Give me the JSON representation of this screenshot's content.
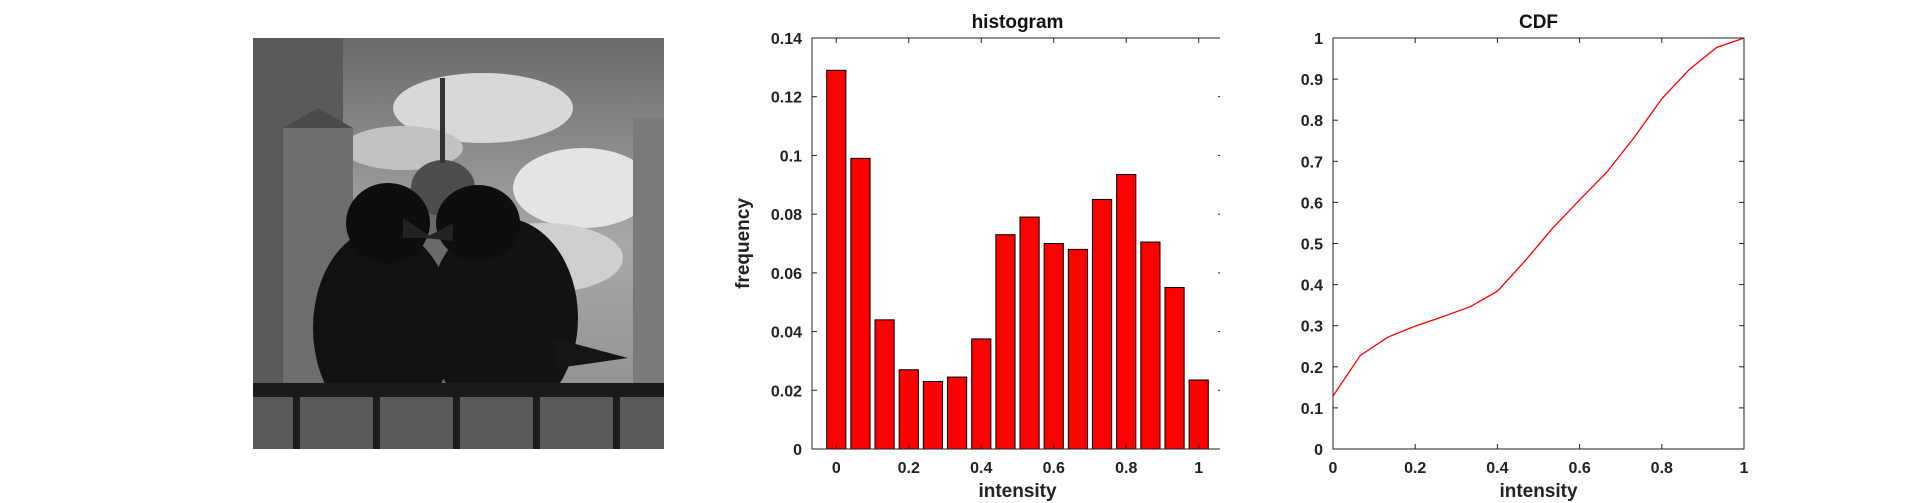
{
  "photo": {
    "subject": "Two ravens perched on an iron railing in front of castle towers under a cloudy sky (grayscale)"
  },
  "chart_data": [
    {
      "type": "bar",
      "title": "histogram",
      "xlabel": "intensity",
      "ylabel": "frequency",
      "xlim": [
        -0.067,
        1.067
      ],
      "ylim": [
        0,
        0.14
      ],
      "x_ticks": [
        0,
        0.2,
        0.4,
        0.6,
        0.8,
        1
      ],
      "x_tick_labels": [
        "0",
        "0.2",
        "0.4",
        "0.6",
        "0.8",
        "1"
      ],
      "y_ticks": [
        0,
        0.02,
        0.04,
        0.06,
        0.08,
        0.1,
        0.12,
        0.14
      ],
      "y_tick_labels": [
        "0",
        "0.02",
        "0.04",
        "0.06",
        "0.08",
        "0.1",
        "0.12",
        "0.14"
      ],
      "bar_width": 0.053,
      "x": [
        0,
        0.0667,
        0.1333,
        0.2,
        0.2667,
        0.3333,
        0.4,
        0.4667,
        0.5333,
        0.6,
        0.6667,
        0.7333,
        0.8,
        0.8667,
        0.9333,
        1.0
      ],
      "values": [
        0.129,
        0.099,
        0.044,
        0.027,
        0.023,
        0.0245,
        0.0375,
        0.073,
        0.079,
        0.07,
        0.068,
        0.085,
        0.0935,
        0.0705,
        0.055,
        0.0235
      ],
      "bar_color": "#ff0000",
      "edge_color": "#000000"
    },
    {
      "type": "line",
      "title": "CDF",
      "xlabel": "intensity",
      "ylabel": "",
      "xlim": [
        0,
        1
      ],
      "ylim": [
        0,
        1
      ],
      "x_ticks": [
        0,
        0.2,
        0.4,
        0.6,
        0.8,
        1
      ],
      "x_tick_labels": [
        "0",
        "0.2",
        "0.4",
        "0.6",
        "0.8",
        "1"
      ],
      "y_ticks": [
        0,
        0.1,
        0.2,
        0.3,
        0.4,
        0.5,
        0.6,
        0.7,
        0.8,
        0.9,
        1
      ],
      "y_tick_labels": [
        "0",
        "0.1",
        "0.2",
        "0.3",
        "0.4",
        "0.5",
        "0.6",
        "0.7",
        "0.8",
        "0.9",
        "1"
      ],
      "x": [
        0,
        0.0667,
        0.1333,
        0.2,
        0.2667,
        0.3333,
        0.4,
        0.4667,
        0.5333,
        0.6,
        0.6667,
        0.7333,
        0.8,
        0.8667,
        0.9333,
        1.0
      ],
      "values": [
        0.129,
        0.228,
        0.272,
        0.299,
        0.322,
        0.346,
        0.384,
        0.457,
        0.536,
        0.606,
        0.674,
        0.759,
        0.852,
        0.923,
        0.977,
        1.0
      ],
      "line_color": "#ff0000"
    }
  ]
}
